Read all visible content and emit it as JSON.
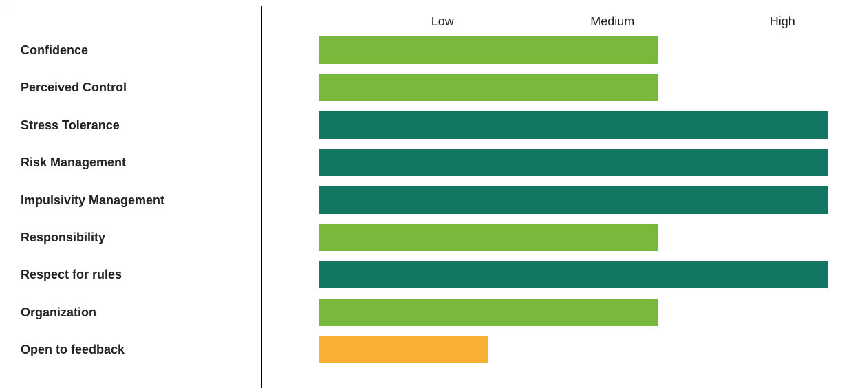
{
  "chart_data": {
    "type": "bar",
    "orientation": "horizontal",
    "scale_labels": [
      "Low",
      "Medium",
      "High"
    ],
    "categories": [
      "Confidence",
      "Perceived Control",
      "Stress Tolerance",
      "Risk Management",
      "Impulsivity Management",
      "Responsibility",
      "Respect for rules",
      "Organization",
      "Open to feedback"
    ],
    "values": [
      2,
      2,
      3,
      3,
      3,
      2,
      3,
      2,
      1
    ],
    "value_labels": [
      "Medium",
      "Medium",
      "High",
      "High",
      "High",
      "Medium",
      "High",
      "Medium",
      "Low"
    ],
    "xlim": [
      0,
      3
    ],
    "grid": false,
    "legend": "none"
  },
  "colors": {
    "low": "#f8b133",
    "medium": "#78b83a",
    "high": "#137663",
    "border": "#000000",
    "text": "#222222"
  }
}
